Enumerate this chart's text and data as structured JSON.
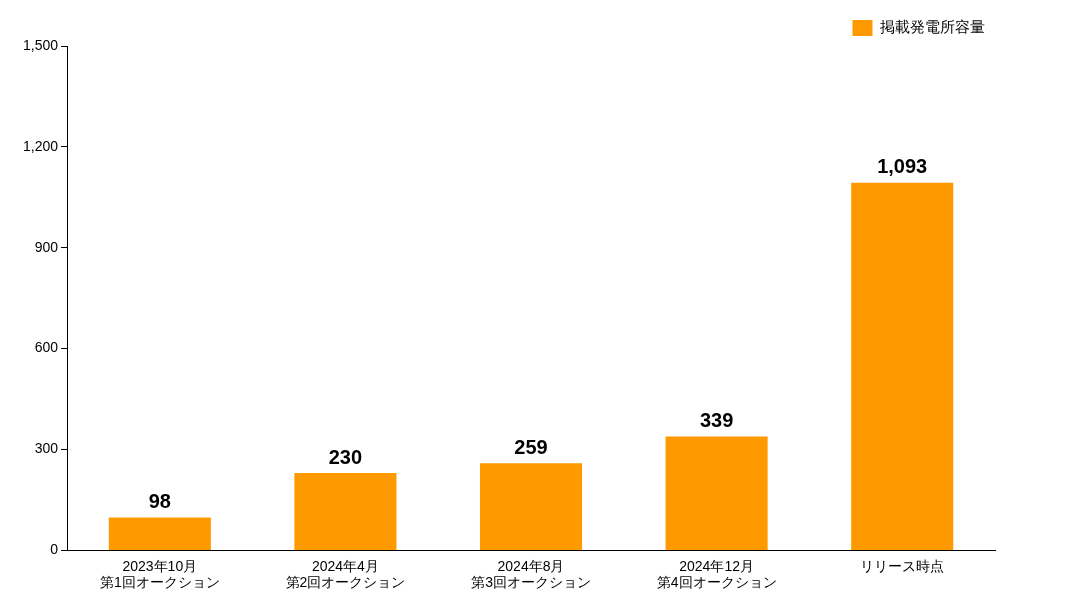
{
  "chart_data": {
    "type": "bar",
    "categories": [
      "2023年10月第1回オークション",
      "2024年4月第2回オークション",
      "2024年8月第3回オークション",
      "2024年12月第4回オークション",
      "リリース時点"
    ],
    "series": [
      {
        "name": "掲載発電所容量",
        "color": "#ff9900",
        "values": [
          98,
          230,
          259,
          339,
          1093
        ]
      }
    ],
    "value_labels": [
      "98",
      "230",
      "259",
      "339",
      "1,093"
    ],
    "ylim": [
      0,
      1500
    ],
    "yticks": [
      0,
      300,
      600,
      900,
      {
        "value": 1200,
        "label": "1,200"
      },
      {
        "value": 1500,
        "label": "1,500"
      }
    ],
    "grid": false,
    "legend": "top right"
  }
}
